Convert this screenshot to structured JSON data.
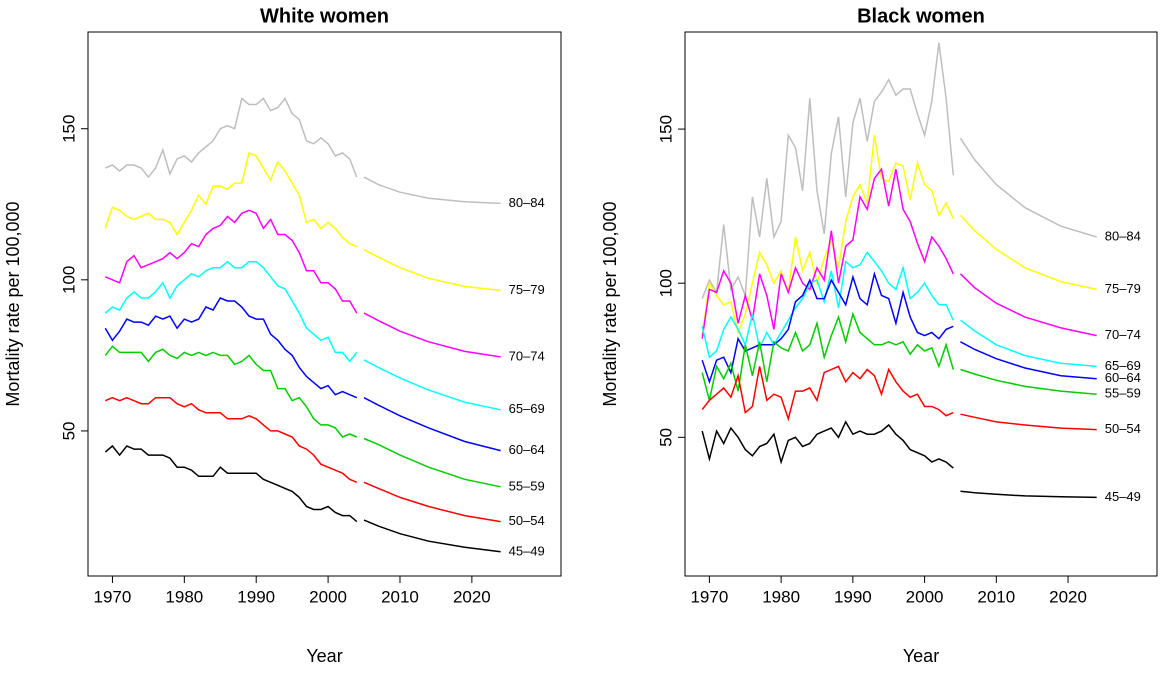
{
  "chart_data": [
    {
      "type": "line",
      "title": "White women",
      "x_label": "Year",
      "y_label": "Mortality rate per 100,000",
      "x": [
        1969,
        1970,
        1971,
        1972,
        1973,
        1974,
        1975,
        1976,
        1977,
        1978,
        1979,
        1980,
        1981,
        1982,
        1983,
        1984,
        1985,
        1986,
        1987,
        1988,
        1989,
        1990,
        1991,
        1992,
        1993,
        1994,
        1995,
        1996,
        1997,
        1998,
        1999,
        2000,
        2001,
        2002,
        2003,
        2004
      ],
      "projection_x": [
        2005,
        2007,
        2010,
        2014,
        2019,
        2024
      ],
      "xlim": [
        1966.6,
        2032.4
      ],
      "xticks": [
        1970,
        1980,
        1990,
        2000,
        2010,
        2020
      ],
      "ylim": [
        2,
        182
      ],
      "yticks": [
        50,
        100,
        150
      ],
      "series": [
        {
          "name": "80–84",
          "color": "#bebebe",
          "values": [
            137,
            138,
            136,
            138,
            138,
            137,
            134,
            137,
            143,
            135,
            140,
            141,
            139,
            142,
            144,
            146,
            150,
            151,
            150,
            160,
            158,
            158,
            160,
            156,
            157,
            160,
            155,
            153,
            146,
            145,
            147,
            145,
            141,
            142,
            140,
            134
          ],
          "projection": [
            134,
            131.5,
            129,
            127,
            125.8,
            125.3
          ]
        },
        {
          "name": "75–79",
          "color": "#ffff00",
          "values": [
            117,
            124,
            123,
            121,
            120,
            121,
            122,
            120,
            120,
            119,
            115,
            119,
            123,
            128,
            125,
            131,
            131,
            130,
            132,
            132,
            142,
            141,
            137,
            133,
            139,
            136,
            132,
            128,
            119,
            120,
            117,
            119,
            117,
            114,
            112,
            111
          ],
          "projection": [
            110,
            107.5,
            104,
            100.5,
            97.8,
            96.5
          ]
        },
        {
          "name": "70–74",
          "color": "#ff00ff",
          "values": [
            101,
            100,
            99,
            106,
            108,
            104,
            105,
            106,
            107,
            109,
            107,
            109,
            112,
            111,
            115,
            117,
            118,
            121,
            119,
            122,
            123,
            122,
            117,
            120,
            115,
            115,
            113,
            109,
            103,
            103,
            99,
            99,
            97,
            93,
            93,
            89
          ],
          "projection": [
            89,
            86.5,
            83,
            79.5,
            76.3,
            74.5
          ]
        },
        {
          "name": "65–69",
          "color": "#00ffff",
          "values": [
            89,
            91,
            90,
            94,
            96,
            94,
            94,
            96,
            99,
            94,
            98,
            100,
            102,
            101,
            103,
            104,
            104,
            106,
            104,
            104,
            106,
            106,
            104,
            101,
            98,
            97,
            93,
            89,
            84,
            82,
            80,
            81,
            76,
            76,
            73,
            76
          ],
          "projection": [
            73.5,
            71,
            67.5,
            63.5,
            59.5,
            57
          ]
        },
        {
          "name": "60–64",
          "color": "#0000ff",
          "values": [
            84,
            80,
            83,
            87,
            86,
            86,
            85,
            88,
            87,
            88,
            84,
            87,
            86,
            87,
            91,
            90,
            94,
            93,
            93,
            91,
            88,
            87,
            87,
            82,
            80,
            77,
            75,
            71,
            68,
            66,
            64,
            65,
            62,
            63,
            62,
            61
          ],
          "projection": [
            61,
            58.5,
            55,
            51,
            46.5,
            43.5
          ]
        },
        {
          "name": "55–59",
          "color": "#00cd00",
          "values": [
            75,
            78,
            76,
            76,
            76,
            76,
            73,
            76,
            77,
            75,
            74,
            76,
            75,
            76,
            75,
            76,
            75,
            75,
            72,
            73,
            75,
            72,
            70,
            70,
            64,
            64,
            60,
            61,
            58,
            54,
            52,
            52,
            51,
            48,
            49,
            48
          ],
          "projection": [
            47.5,
            45.5,
            42,
            38,
            34,
            31.5
          ]
        },
        {
          "name": "50–54",
          "color": "#ff0000",
          "values": [
            60,
            61,
            60,
            61,
            60,
            59,
            59,
            61,
            61,
            61,
            59,
            58,
            59,
            57,
            56,
            56,
            56,
            54,
            54,
            54,
            55,
            54,
            52,
            50,
            50,
            49,
            48,
            45,
            44,
            42,
            39,
            38,
            37,
            36,
            34,
            33
          ],
          "projection": [
            33,
            31,
            28,
            25,
            22,
            20
          ]
        },
        {
          "name": "45–49",
          "color": "#000000",
          "values": [
            43,
            45,
            42,
            45,
            44,
            44,
            42,
            42,
            42,
            41,
            38,
            38,
            37,
            35,
            35,
            35,
            38,
            36,
            36,
            36,
            36,
            36,
            34,
            33,
            32,
            31,
            30,
            28,
            25,
            24,
            24,
            25,
            23,
            22,
            22,
            20
          ],
          "projection": [
            20.5,
            18.5,
            16,
            13.5,
            11.5,
            10
          ]
        }
      ]
    },
    {
      "type": "line",
      "title": "Black women",
      "x_label": "Year",
      "y_label": "Mortality rate per 100,000",
      "x": [
        1969,
        1970,
        1971,
        1972,
        1973,
        1974,
        1975,
        1976,
        1977,
        1978,
        1979,
        1980,
        1981,
        1982,
        1983,
        1984,
        1985,
        1986,
        1987,
        1988,
        1989,
        1990,
        1991,
        1992,
        1993,
        1994,
        1995,
        1996,
        1997,
        1998,
        1999,
        2000,
        2001,
        2002,
        2003,
        2004
      ],
      "projection_x": [
        2005,
        2007,
        2010,
        2014,
        2019,
        2024
      ],
      "xlim": [
        1966.6,
        2032.4
      ],
      "xticks": [
        1970,
        1980,
        1990,
        2000,
        2010,
        2020
      ],
      "ylim": [
        5,
        181.5
      ],
      "yticks": [
        50,
        100,
        150
      ],
      "series": [
        {
          "name": "80–84",
          "color": "#bebebe",
          "values": [
            95,
            101,
            97,
            119,
            98,
            102,
            96,
            128,
            115,
            134,
            115,
            120,
            148,
            144,
            130,
            160,
            130,
            116,
            142,
            154,
            128,
            152,
            160,
            146,
            159,
            162,
            166,
            161,
            163,
            163,
            155,
            148,
            159,
            178,
            160,
            135
          ],
          "projection": [
            147,
            140,
            132,
            124.5,
            118.5,
            115
          ]
        },
        {
          "name": "75–79",
          "color": "#ffff00",
          "values": [
            83,
            100,
            96,
            93,
            94,
            84,
            90,
            100,
            110,
            106,
            100,
            104,
            97,
            115,
            104,
            110,
            100,
            108,
            114,
            105,
            120,
            128,
            132,
            126,
            148,
            134,
            133,
            139,
            138,
            127,
            139,
            132,
            130,
            122,
            126,
            121
          ],
          "projection": [
            122,
            117,
            111,
            105,
            100.5,
            98
          ]
        },
        {
          "name": "70–74",
          "color": "#ff00ff",
          "values": [
            82,
            98,
            97,
            104,
            100,
            87,
            96,
            88,
            103,
            96,
            85,
            103,
            97,
            105,
            100,
            98,
            105,
            101,
            117,
            100,
            112,
            114,
            128,
            124,
            134,
            137,
            125,
            137,
            124,
            120,
            113,
            107,
            115,
            112,
            108,
            103
          ],
          "projection": [
            103,
            98.5,
            93.5,
            89,
            85.5,
            83
          ]
        },
        {
          "name": "65–69",
          "color": "#00ffff",
          "values": [
            86,
            76,
            78,
            85,
            89,
            85,
            80,
            90,
            79,
            84,
            80,
            84,
            88,
            92,
            95,
            100,
            101,
            94,
            104,
            92,
            107,
            105,
            106,
            110,
            107,
            104,
            100,
            98,
            105,
            95,
            97,
            100,
            96,
            93,
            93,
            88
          ],
          "projection": [
            88,
            84.5,
            80,
            76.5,
            74,
            73
          ]
        },
        {
          "name": "60–64",
          "color": "#0000ff",
          "values": [
            75,
            68,
            75,
            76,
            71,
            82,
            78,
            79,
            80,
            80,
            80,
            82,
            85,
            94,
            96,
            101,
            95,
            95,
            101,
            97,
            93,
            102,
            95,
            93,
            103,
            96,
            95,
            87,
            97,
            89,
            84,
            83,
            84,
            82,
            85,
            86
          ],
          "projection": [
            81,
            78.5,
            75.5,
            72.5,
            70,
            69
          ]
        },
        {
          "name": "55–59",
          "color": "#00cd00",
          "values": [
            71,
            62,
            73,
            69,
            74,
            65,
            80,
            70,
            81,
            68,
            81,
            79,
            78,
            84,
            78,
            80,
            87,
            76,
            83,
            89,
            81,
            90,
            84,
            82,
            80,
            80,
            81,
            80,
            81,
            77,
            80,
            78,
            79,
            73,
            80,
            72
          ],
          "projection": [
            72,
            70.5,
            68.5,
            66.5,
            65,
            64
          ]
        },
        {
          "name": "50–54",
          "color": "#ff0000",
          "values": [
            59,
            62,
            64,
            66,
            63,
            70,
            58,
            60,
            73,
            62,
            64,
            63,
            56,
            65,
            65,
            66,
            62,
            71,
            72,
            73,
            68,
            71,
            69,
            72,
            70,
            64,
            72,
            68,
            65,
            63,
            64,
            60,
            60,
            59,
            57,
            58
          ],
          "projection": [
            57.5,
            56.5,
            55,
            54,
            53,
            52.5
          ]
        },
        {
          "name": "45–49",
          "color": "#000000",
          "values": [
            52,
            43,
            52,
            48,
            53,
            50,
            46,
            44,
            47,
            48,
            51,
            42,
            49,
            50,
            47,
            48,
            51,
            52,
            53,
            50,
            55,
            51,
            52,
            51,
            51,
            52,
            54,
            51,
            49,
            46,
            45,
            44,
            42,
            43,
            42,
            40
          ],
          "projection": [
            32.5,
            32,
            31.5,
            31,
            30.7,
            30.5
          ]
        }
      ]
    }
  ]
}
